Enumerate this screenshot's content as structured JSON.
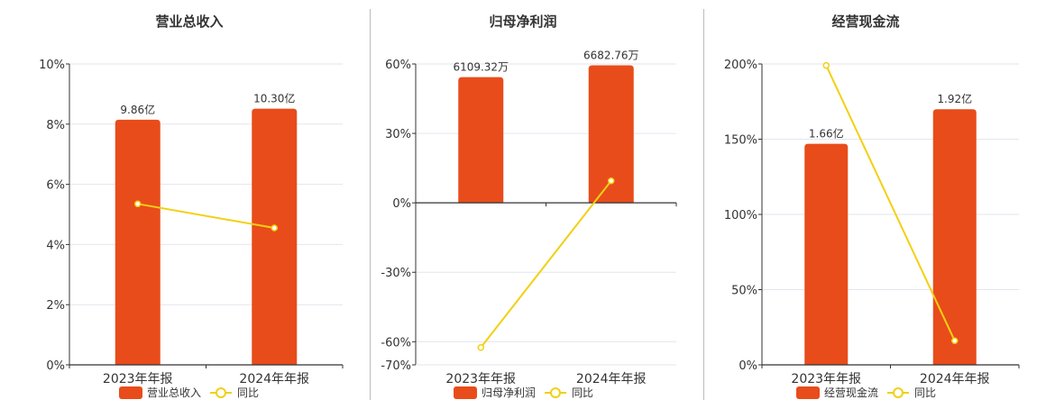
{
  "colors": {
    "bar": "#E84C1B",
    "line": "#F2D013",
    "grid": "#E3E6EE",
    "axis": "#333333",
    "divider": "#BBBBBB",
    "text": "#333333"
  },
  "chart_data": [
    {
      "type": "bar",
      "title": "营业总收入",
      "categories": [
        "2023年年报",
        "2024年年报"
      ],
      "bar_series": {
        "name": "营业总收入",
        "values": [
          9.86,
          10.3
        ],
        "labels": [
          "9.86亿",
          "10.30亿"
        ]
      },
      "line_series": {
        "name": "同比",
        "values": [
          5.35,
          4.55
        ]
      },
      "yaxis": {
        "ticks": [
          0,
          2,
          4,
          6,
          8,
          10
        ],
        "tick_labels": [
          "0%",
          "2%",
          "4%",
          "6%",
          "8%",
          "10%"
        ],
        "min": 0,
        "max": 10
      },
      "bar_axis_max": 12.1,
      "legend": "bottom"
    },
    {
      "type": "bar",
      "title": "归母净利润",
      "categories": [
        "2023年年报",
        "2024年年报"
      ],
      "bar_series": {
        "name": "归母净利润",
        "values": [
          6109.32,
          6682.76
        ],
        "labels": [
          "6109.32万",
          "6682.76万"
        ]
      },
      "line_series": {
        "name": "同比",
        "values": [
          -62.5,
          9.5
        ]
      },
      "yaxis": {
        "ticks": [
          -70,
          -60,
          -30,
          0,
          30,
          60
        ],
        "tick_labels": [
          "-70%",
          "-60%",
          "-30%",
          "0%",
          "30%",
          "60%"
        ],
        "min": -70,
        "max": 60
      },
      "bar_axis_max": 6750,
      "legend": "bottom"
    },
    {
      "type": "bar",
      "title": "经营现金流",
      "categories": [
        "2023年年报",
        "2024年年报"
      ],
      "bar_series": {
        "name": "经营现金流",
        "values": [
          1.66,
          1.92
        ],
        "labels": [
          "1.66亿",
          "1.92亿"
        ]
      },
      "line_series": {
        "name": "同比",
        "values": [
          199,
          16
        ]
      },
      "yaxis": {
        "ticks": [
          0,
          50,
          100,
          150,
          200
        ],
        "tick_labels": [
          "0%",
          "50%",
          "100%",
          "150%",
          "200%"
        ],
        "min": 0,
        "max": 200
      },
      "bar_axis_max": 2.26,
      "legend": "bottom"
    }
  ]
}
